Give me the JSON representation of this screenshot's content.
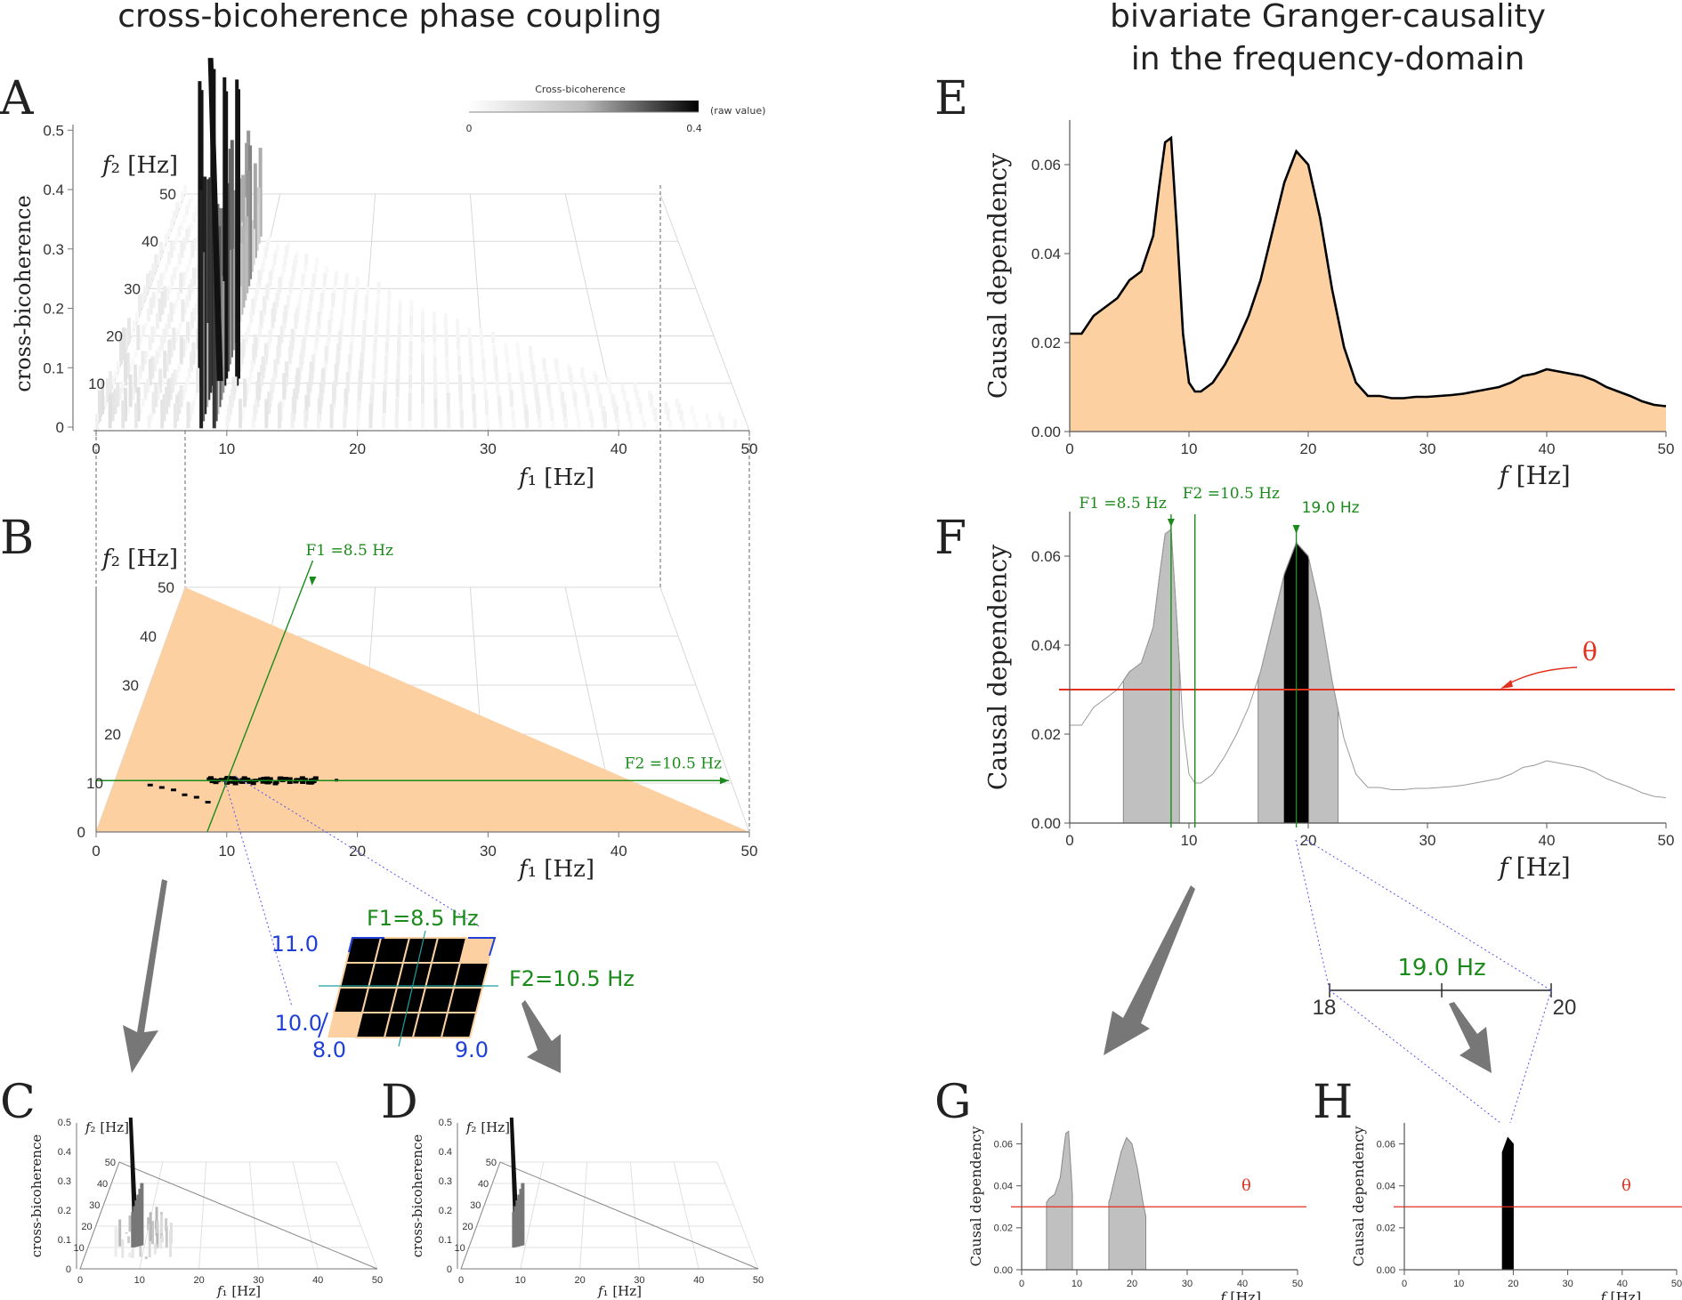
{
  "titles": {
    "left": "cross-bicoherence phase coupling",
    "right_line1": "bivariate Granger-causality",
    "right_line2": "in the frequency-domain"
  },
  "panel_letters": [
    "A",
    "B",
    "C",
    "D",
    "E",
    "F",
    "G",
    "H"
  ],
  "colors": {
    "fill_orange": "#fdd0a2",
    "green": "#1a8a1a",
    "red": "#e0301e",
    "blue": "#1f3fd6",
    "gray_fill": "#c0c0c0",
    "black": "#000000"
  },
  "chart_data": [
    {
      "id": "A",
      "type": "bar3d",
      "title": "",
      "xlabel": "f1 [Hz]",
      "ylabel": "f2 [Hz]",
      "zlabel": "cross-bicoherence",
      "xlim": [
        0,
        50
      ],
      "ylim": [
        0,
        50
      ],
      "zlim": [
        0,
        0.5
      ],
      "x_ticks": [
        "0",
        "10",
        "20",
        "30",
        "40",
        "50"
      ],
      "y_ticks": [
        "0",
        "10",
        "20",
        "30",
        "40",
        "50"
      ],
      "z_ticks": [
        "0",
        "0.1",
        "0.2",
        "0.3",
        "0.4",
        "0.5"
      ],
      "peak": {
        "f1": 8.5,
        "f2": 10.5,
        "value": 0.5
      },
      "colorbar": {
        "label": "Cross-bicoherence",
        "min_label": "0",
        "max_label": "0.4",
        "unit": "(raw value)"
      }
    },
    {
      "id": "B",
      "type": "scatter",
      "xlabel": "f1 [Hz]",
      "ylabel": "f2 [Hz]",
      "xlim": [
        0,
        50
      ],
      "ylim": [
        0,
        50
      ],
      "x_ticks": [
        "0",
        "10",
        "20",
        "30",
        "40",
        "50"
      ],
      "y_ticks": [
        "0",
        "10",
        "20",
        "30",
        "40",
        "50"
      ],
      "region": "f2 < 50 - f1 triangle",
      "marker_F1": {
        "label": "F1 =8.5 Hz",
        "value": 8.5
      },
      "marker_F2": {
        "label": "F2 =10.5 Hz",
        "value": 10.5
      },
      "inset": {
        "F1_label": "F1=8.5 Hz",
        "F2_label": "F2=10.5 Hz",
        "f1_range_labels": [
          "8.0",
          "9.0"
        ],
        "f2_range_labels": [
          "10.0",
          "11.0"
        ]
      }
    },
    {
      "id": "C",
      "type": "bar3d",
      "xlabel": "f1 [Hz]",
      "ylabel": "f2 [Hz]",
      "zlabel": "cross-bicoherence",
      "x_ticks": [
        "0",
        "10",
        "20",
        "30",
        "40",
        "50"
      ],
      "y_ticks": [
        "0",
        "10",
        "20",
        "30",
        "40",
        "50"
      ],
      "z_ticks": [
        "0",
        "0.1",
        "0.2",
        "0.3",
        "0.4",
        "0.5"
      ]
    },
    {
      "id": "D",
      "type": "bar3d",
      "xlabel": "f1 [Hz]",
      "ylabel": "f2 [Hz]",
      "zlabel": "cross-bicoherence",
      "x_ticks": [
        "0",
        "10",
        "20",
        "30",
        "40",
        "50"
      ],
      "y_ticks": [
        "0",
        "10",
        "20",
        "30",
        "40",
        "50"
      ],
      "z_ticks": [
        "0",
        "0.1",
        "0.2",
        "0.3",
        "0.4",
        "0.5"
      ]
    },
    {
      "id": "E",
      "type": "area",
      "xlabel": "f [Hz]",
      "ylabel": "Causal dependency",
      "xlim": [
        0,
        50
      ],
      "ylim": [
        0,
        0.07
      ],
      "x_ticks": [
        "0",
        "10",
        "20",
        "30",
        "40",
        "50"
      ],
      "y_ticks": [
        "0.00",
        "0.02",
        "0.04",
        "0.06"
      ],
      "x": [
        0,
        1,
        2,
        3,
        4,
        5,
        6,
        7,
        7.5,
        8,
        8.5,
        9,
        9.5,
        10,
        10.5,
        11,
        12,
        13,
        14,
        15,
        16,
        17,
        18,
        19,
        20,
        21,
        22,
        23,
        24,
        25,
        26,
        27,
        28,
        29,
        30,
        31,
        32,
        33,
        34,
        35,
        36,
        37,
        38,
        39,
        40,
        41,
        42,
        43,
        44,
        45,
        46,
        47,
        48,
        49,
        50
      ],
      "y": [
        0.022,
        0.022,
        0.026,
        0.028,
        0.03,
        0.034,
        0.036,
        0.044,
        0.055,
        0.065,
        0.066,
        0.045,
        0.022,
        0.011,
        0.009,
        0.009,
        0.011,
        0.015,
        0.02,
        0.026,
        0.034,
        0.045,
        0.056,
        0.063,
        0.06,
        0.048,
        0.032,
        0.019,
        0.011,
        0.008,
        0.008,
        0.0075,
        0.0075,
        0.0078,
        0.0078,
        0.008,
        0.0082,
        0.0085,
        0.009,
        0.0095,
        0.01,
        0.011,
        0.0125,
        0.013,
        0.014,
        0.0135,
        0.013,
        0.0125,
        0.0115,
        0.01,
        0.009,
        0.008,
        0.0068,
        0.006,
        0.0057
      ]
    },
    {
      "id": "F",
      "type": "area",
      "xlabel": "f [Hz]",
      "ylabel": "Causal dependency",
      "xlim": [
        0,
        50
      ],
      "ylim": [
        0,
        0.07
      ],
      "x_ticks": [
        "0",
        "10",
        "20",
        "30",
        "40",
        "50"
      ],
      "y_ticks": [
        "0.00",
        "0.02",
        "0.04",
        "0.06"
      ],
      "threshold": {
        "value": 0.03,
        "label": "θ"
      },
      "shaded_gray_ranges": [
        [
          4.5,
          9.2
        ],
        [
          15.8,
          22.5
        ]
      ],
      "shaded_black_range": [
        18.0,
        20.0
      ],
      "markers": [
        {
          "label": "F1 =8.5 Hz",
          "value": 8.5
        },
        {
          "label": "F2 =10.5 Hz",
          "value": 10.5
        },
        {
          "label": "19.0 Hz",
          "value": 19.0
        }
      ],
      "zoom": {
        "label": "19.0 Hz",
        "left": "18",
        "right": "20"
      }
    },
    {
      "id": "G",
      "type": "area",
      "xlabel": "f [Hz]",
      "ylabel": "Causal dependency",
      "x_ticks": [
        "0",
        "10",
        "20",
        "30",
        "40",
        "50"
      ],
      "y_ticks": [
        "0.00",
        "0.02",
        "0.04",
        "0.06"
      ],
      "threshold": {
        "value": 0.03,
        "label": "θ"
      },
      "shaded_gray_ranges": [
        [
          4.5,
          9.2
        ],
        [
          15.8,
          22.5
        ]
      ]
    },
    {
      "id": "H",
      "type": "area",
      "xlabel": "f [Hz]",
      "ylabel": "Causal dependency",
      "x_ticks": [
        "0",
        "10",
        "20",
        "30",
        "40",
        "50"
      ],
      "y_ticks": [
        "0.00",
        "0.02",
        "0.04",
        "0.06"
      ],
      "threshold": {
        "value": 0.03,
        "label": "θ"
      },
      "shaded_black_range": [
        18.0,
        20.0
      ]
    }
  ]
}
